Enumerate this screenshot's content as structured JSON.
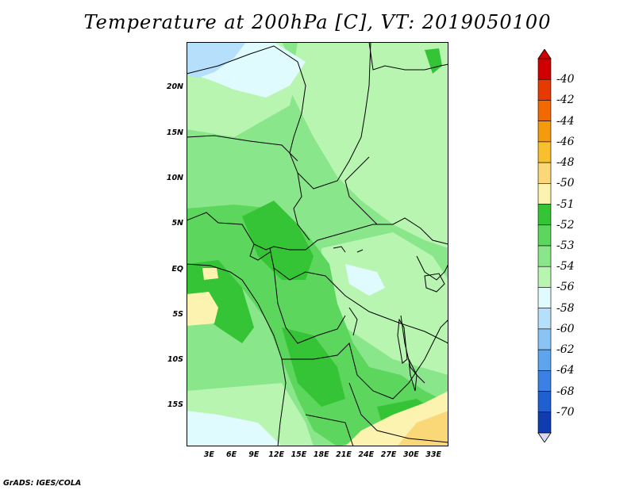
{
  "title": "Temperature at 200hPa [C], VT: 2019050100",
  "footer": "GrADS: IGES/COLA",
  "map": {
    "lat_labels": [
      {
        "text": "20N",
        "lat": 20
      },
      {
        "text": "15N",
        "lat": 15
      },
      {
        "text": "10N",
        "lat": 10
      },
      {
        "text": "5N",
        "lat": 5
      },
      {
        "text": "EQ",
        "lat": 0
      },
      {
        "text": "5S",
        "lat": -5
      },
      {
        "text": "10S",
        "lat": -10
      },
      {
        "text": "15S",
        "lat": -15
      }
    ],
    "lon_labels": [
      {
        "text": "3E",
        "lon": 3
      },
      {
        "text": "6E",
        "lon": 6
      },
      {
        "text": "9E",
        "lon": 9
      },
      {
        "text": "12E",
        "lon": 12
      },
      {
        "text": "15E",
        "lon": 15
      },
      {
        "text": "18E",
        "lon": 18
      },
      {
        "text": "21E",
        "lon": 21
      },
      {
        "text": "24E",
        "lon": 24
      },
      {
        "text": "27E",
        "lon": 27
      },
      {
        "text": "30E",
        "lon": 30
      },
      {
        "text": "33E",
        "lon": 33
      }
    ],
    "extent": {
      "lon_min": 0,
      "lon_max": 35,
      "lat_min": -19.5,
      "lat_max": 25
    }
  },
  "colorbar": {
    "levels": [
      {
        "label": "-40",
        "color": "#d10000"
      },
      {
        "label": "-42",
        "color": "#e63a00"
      },
      {
        "label": "-44",
        "color": "#f06a00"
      },
      {
        "label": "-46",
        "color": "#f59a0a"
      },
      {
        "label": "-48",
        "color": "#f8bf2e"
      },
      {
        "label": "-50",
        "color": "#fad878"
      },
      {
        "label": "-51",
        "color": "#fdf3b0"
      },
      {
        "label": "-52",
        "color": "#35c435"
      },
      {
        "label": "-53",
        "color": "#5cd65c"
      },
      {
        "label": "-54",
        "color": "#8ae68a"
      },
      {
        "label": "-56",
        "color": "#b8f5b0"
      },
      {
        "label": "-58",
        "color": "#e0fbfd"
      },
      {
        "label": "-60",
        "color": "#b5dffb"
      },
      {
        "label": "-62",
        "color": "#8ac4f5"
      },
      {
        "label": "-64",
        "color": "#5ea5ee"
      },
      {
        "label": "-68",
        "color": "#3b80e3"
      },
      {
        "label": "-70",
        "color": "#1f5fd1"
      }
    ],
    "bottom_color": "#0f3cb0",
    "end_colors": [
      "#0a1f80",
      "#d9d9f7"
    ]
  }
}
